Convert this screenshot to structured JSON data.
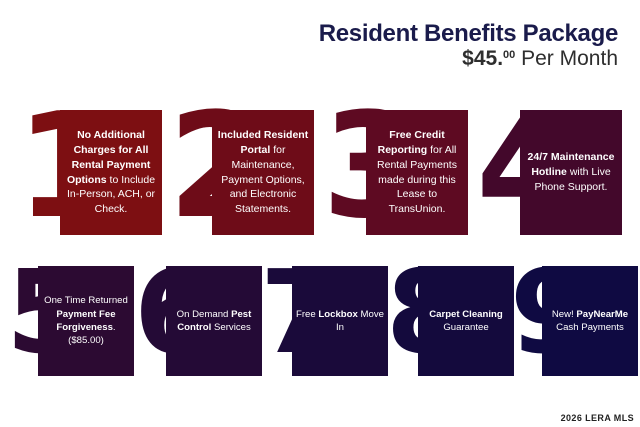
{
  "header": {
    "title": "Resident Benefits Package",
    "price_dollars": "$45.",
    "price_cents": "00",
    "price_suffix": " Per Month"
  },
  "benefits": [
    {
      "number": "1",
      "text_parts": [
        {
          "bold": true,
          "text": "No Additional Charges for All Rental Payment Options"
        },
        {
          "bold": false,
          "text": " to Include In-Person, ACH, or Check."
        }
      ]
    },
    {
      "number": "2",
      "text_parts": [
        {
          "bold": true,
          "text": "Included Resident Portal"
        },
        {
          "bold": false,
          "text": " for Maintenance, Payment Options, and Electronic Statements."
        }
      ]
    },
    {
      "number": "3",
      "text_parts": [
        {
          "bold": true,
          "text": "Free Credit Reporting"
        },
        {
          "bold": false,
          "text": " for All Rental Payments made during this Lease to TransUnion."
        }
      ]
    },
    {
      "number": "4",
      "text_parts": [
        {
          "bold": true,
          "text": "24/7 Maintenance Hotline"
        },
        {
          "bold": false,
          "text": " with Live Phone Support."
        }
      ]
    },
    {
      "number": "5",
      "text_parts": [
        {
          "bold": false,
          "text": "One Time Returned "
        },
        {
          "bold": true,
          "text": "Payment Fee Forgiveness"
        },
        {
          "bold": false,
          "text": ". ($85.00)"
        }
      ]
    },
    {
      "number": "6",
      "text_parts": [
        {
          "bold": false,
          "text": "On Demand "
        },
        {
          "bold": true,
          "text": "Pest Control"
        },
        {
          "bold": false,
          "text": " Services"
        }
      ]
    },
    {
      "number": "7",
      "text_parts": [
        {
          "bold": false,
          "text": "Free "
        },
        {
          "bold": true,
          "text": "Lockbox"
        },
        {
          "bold": false,
          "text": " Move In"
        }
      ]
    },
    {
      "number": "8",
      "text_parts": [
        {
          "bold": true,
          "text": "Carpet Cleaning"
        },
        {
          "bold": false,
          "text": " Guarantee"
        }
      ]
    },
    {
      "number": "9",
      "text_parts": [
        {
          "bold": false,
          "text": "New! "
        },
        {
          "bold": true,
          "text": "PayNearMe"
        },
        {
          "bold": false,
          "text": " Cash Payments"
        }
      ]
    }
  ],
  "colors": {
    "title": "#1a1b4b",
    "card_1": "#7d0f12",
    "card_2": "#6e0c18",
    "card_3": "#5e0a22",
    "card_4": "#43082b",
    "card_5": "#2c0a32",
    "card_6": "#240a36",
    "card_7": "#1a0a3a",
    "card_8": "#140a3d",
    "card_9": "#0f0a42"
  },
  "watermark": "2026 LERA MLS"
}
